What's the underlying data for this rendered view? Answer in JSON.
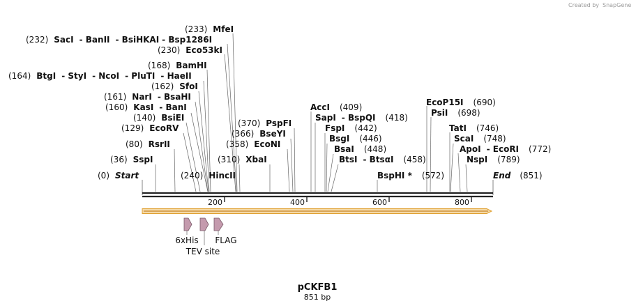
{
  "credit": {
    "text": "Created by",
    "brand": "SnapGene"
  },
  "plasmid": {
    "name": "pCKFB1",
    "length_text": "851 bp"
  },
  "ruler": {
    "ticks": [
      "200",
      "400",
      "600",
      "800"
    ]
  },
  "ends": {
    "start": {
      "pos": "(0)",
      "name": "Start"
    },
    "end": {
      "name": "End",
      "pos": "(851)"
    }
  },
  "sites": [
    {
      "pos": "(36)",
      "name": "SspI"
    },
    {
      "pos": "(80)",
      "name": "RsrII"
    },
    {
      "pos": "(129)",
      "name": "EcoRV"
    },
    {
      "pos": "(140)",
      "name": "BsiEI"
    },
    {
      "pos": "(160)",
      "name": "KasI",
      "more": "BanI"
    },
    {
      "pos": "(161)",
      "name": "NarI",
      "more": "BsaHI"
    },
    {
      "pos": "(162)",
      "name": "SfoI"
    },
    {
      "pos": "(164)",
      "name": "BtgI",
      "more": "StyI",
      "more2": "NcoI",
      "more3": "PluTI",
      "more4": "HaeII"
    },
    {
      "pos": "(168)",
      "name": "BamHI"
    },
    {
      "pos": "(230)",
      "name": "Eco53kI"
    },
    {
      "pos": "(232)",
      "name": "SacI",
      "more": "BanII",
      "more2": "BsiHKAI",
      "more3": "Bsp1286I"
    },
    {
      "pos": "(233)",
      "name": "MfeI"
    },
    {
      "pos": "(240)",
      "name": "HincII"
    },
    {
      "pos": "(310)",
      "name": "XbaI"
    },
    {
      "pos": "(358)",
      "name": "EcoNI"
    },
    {
      "pos": "(366)",
      "name": "BseYI"
    },
    {
      "pos": "(370)",
      "name": "PspFI"
    },
    {
      "pos": "(409)",
      "name": "AccI"
    },
    {
      "pos": "(418)",
      "name": "SapI",
      "more": "BspQI"
    },
    {
      "pos": "(442)",
      "name": "FspI"
    },
    {
      "pos": "(446)",
      "name": "BsgI"
    },
    {
      "pos": "(448)",
      "name": "BsaI"
    },
    {
      "pos": "(458)",
      "name": "BtsI",
      "more": "BtsαI"
    },
    {
      "pos": "(572)",
      "name": "BspHI *"
    },
    {
      "pos": "(690)",
      "name": "EcoP15I"
    },
    {
      "pos": "(698)",
      "name": "PsiI"
    },
    {
      "pos": "(746)",
      "name": "TatI"
    },
    {
      "pos": "(748)",
      "name": "ScaI"
    },
    {
      "pos": "(772)",
      "name": "ApoI",
      "more": "EcoRI"
    },
    {
      "pos": "(789)",
      "name": "NspI"
    }
  ],
  "features": {
    "his": "6xHis",
    "tev": "TEV site",
    "flag": "FLAG"
  },
  "colors": {
    "orf_fill": "#f5d9a6",
    "orf_stroke": "#e0a030",
    "feature_fill": "#c49aad",
    "feature_stroke": "#7a5a68",
    "line": "#666666"
  }
}
